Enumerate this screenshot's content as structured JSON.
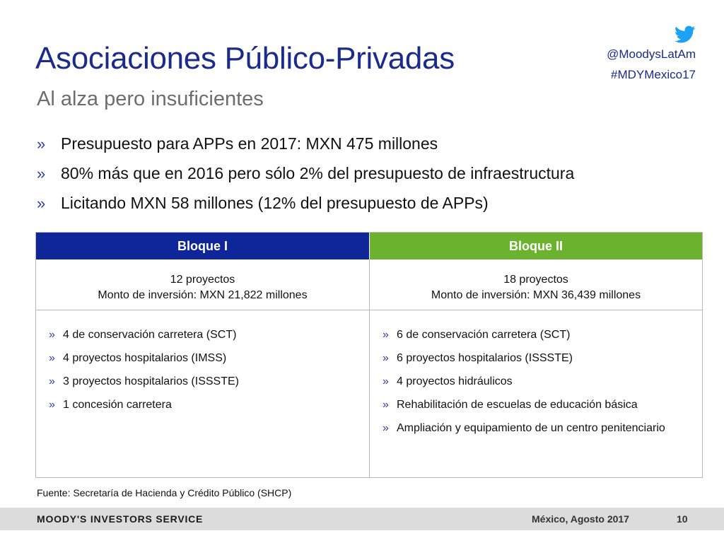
{
  "slide": {
    "title": "Asociaciones Público-Privadas",
    "subtitle": "Al alza pero insuficientes"
  },
  "social": {
    "icon": "twitter-icon",
    "handle": "@MoodysLatAm",
    "hashtag": "#MDYMexico17",
    "color": "#1da1f2"
  },
  "bullet_marker": "»",
  "bullets": [
    "Presupuesto para APPs en 2017: MXN 475 millones",
    "80% más que en 2016 pero sólo 2% del presupuesto de infraestructura",
    "Licitando MXN 58 millones (12% del presupuesto de APPs)"
  ],
  "table": {
    "blocks": [
      {
        "header": "Bloque I",
        "header_color": "#0f2699",
        "summary_line1": "12 proyectos",
        "summary_line2": "Monto de inversión: MXN 21,822 millones",
        "items": [
          "4 de conservación carretera (SCT)",
          "4 proyectos hospitalarios (IMSS)",
          "3 proyectos hospitalarios (ISSSTE)",
          "1 concesión carretera"
        ]
      },
      {
        "header": "Bloque II",
        "header_color": "#6bb32e",
        "summary_line1": "18 proyectos",
        "summary_line2": "Monto de inversión: MXN 36,439 millones",
        "items": [
          "6 de conservación carretera (SCT)",
          "6 proyectos hospitalarios (ISSSTE)",
          "4 proyectos hidráulicos",
          "Rehabilitación de escuelas de educación básica",
          "Ampliación y equipamiento de un centro penitenciario"
        ]
      }
    ]
  },
  "source": "Fuente: Secretaría de Hacienda y Crédito Público (SHCP)",
  "footer": {
    "brand": "MOODY'S INVESTORS SERVICE",
    "date": "México, Agosto 2017",
    "page_number": "10"
  }
}
